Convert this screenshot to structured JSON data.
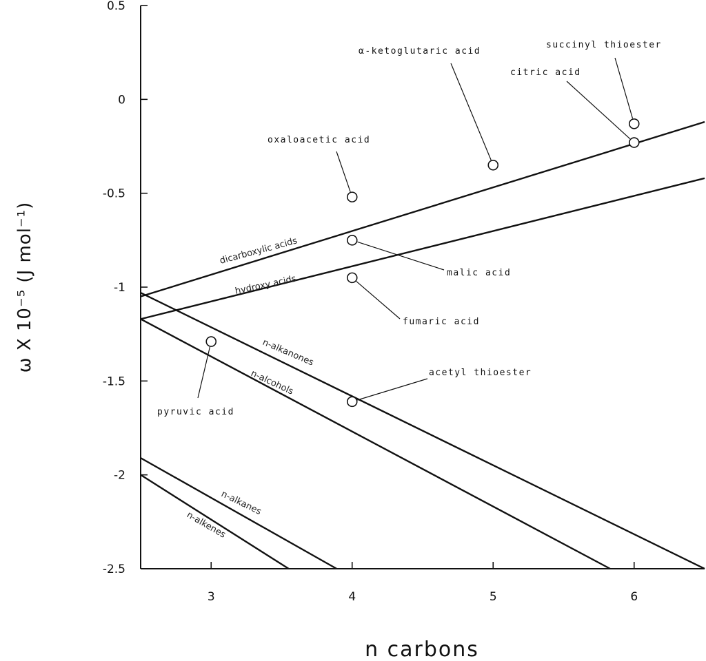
{
  "chart_data": {
    "type": "line",
    "xlabel": "n carbons",
    "ylabel": "ω X 10⁻⁵ (J mol⁻¹)",
    "xlim": [
      2.5,
      6.5
    ],
    "ylim": [
      -2.5,
      0.5
    ],
    "xticks": [
      3,
      4,
      5,
      6
    ],
    "yticks": [
      0.5,
      0,
      -0.5,
      -1,
      -1.5,
      -2,
      -2.5
    ],
    "ytick_labels": [
      "0.5",
      "0",
      "-0.5",
      "-1",
      "-1.5",
      "-2",
      "-2.5"
    ],
    "grid": false,
    "series": [
      {
        "name": "dicarboxylic acids",
        "x": [
          2.5,
          6.5
        ],
        "y": [
          -1.05,
          -0.12
        ]
      },
      {
        "name": "hydroxy acids",
        "x": [
          2.5,
          6.5
        ],
        "y": [
          -1.17,
          -0.42
        ]
      },
      {
        "name": "n-alkanones",
        "x": [
          2.5,
          6.5
        ],
        "y": [
          -1.03,
          -2.5
        ]
      },
      {
        "name": "n-alcohols",
        "x": [
          2.5,
          5.83
        ],
        "y": [
          -1.17,
          -2.5
        ]
      },
      {
        "name": "n-alkanes",
        "x": [
          2.5,
          3.89
        ],
        "y": [
          -1.91,
          -2.5
        ]
      },
      {
        "name": "n-alkenes",
        "x": [
          2.5,
          3.55
        ],
        "y": [
          -2.0,
          -2.5
        ]
      }
    ],
    "points": [
      {
        "label": "pyruvic acid",
        "x": 3,
        "y": -1.29
      },
      {
        "label": "oxaloacetic acid",
        "x": 4,
        "y": -0.52
      },
      {
        "label": "malic acid",
        "x": 4,
        "y": -0.75
      },
      {
        "label": "fumaric acid",
        "x": 4,
        "y": -0.95
      },
      {
        "label": "acetyl thioester",
        "x": 4,
        "y": -1.61
      },
      {
        "label": "α-ketoglutaric acid",
        "x": 5,
        "y": -0.35
      },
      {
        "label": "citric acid",
        "x": 6,
        "y": -0.23
      },
      {
        "label": "succinyl thioester",
        "x": 6,
        "y": -0.13
      }
    ]
  }
}
